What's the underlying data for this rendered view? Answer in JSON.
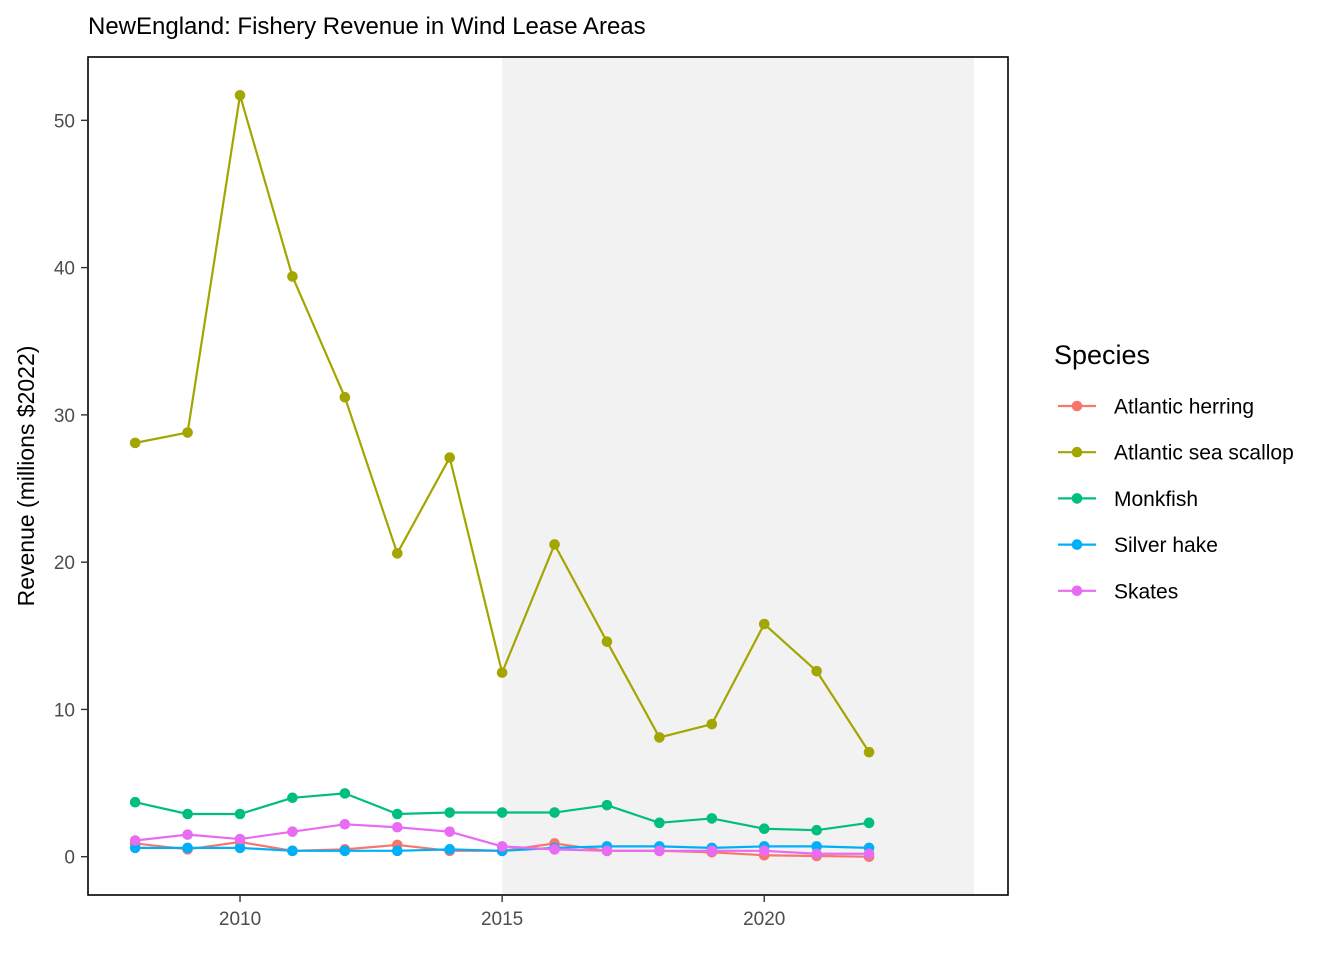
{
  "chart_data": {
    "type": "line",
    "title": "NewEngland: Fishery Revenue in Wind Lease Areas",
    "xlabel": "",
    "ylabel": "Revenue (millions $2022)",
    "x": [
      2008,
      2009,
      2010,
      2011,
      2012,
      2013,
      2014,
      2015,
      2016,
      2017,
      2018,
      2019,
      2020,
      2021,
      2022
    ],
    "xlim": [
      2007.1,
      2024.65
    ],
    "ylim": [
      -2.6,
      54.3
    ],
    "x_ticks": [
      2010,
      2015,
      2020
    ],
    "y_ticks": [
      0,
      10,
      20,
      30,
      40,
      50
    ],
    "shaded_region": {
      "x_start": 2015,
      "x_end": 2024,
      "color": "#f2f2f2"
    },
    "grid": false,
    "legend": {
      "title": "Species",
      "position": "right"
    },
    "series": [
      {
        "name": "Atlantic herring",
        "color": "#F8766D",
        "values": [
          0.9,
          0.5,
          1.0,
          0.4,
          0.5,
          0.8,
          0.4,
          0.4,
          0.9,
          0.4,
          0.4,
          0.3,
          0.1,
          0.05,
          0.0
        ]
      },
      {
        "name": "Atlantic sea scallop",
        "color": "#A3A500",
        "values": [
          28.1,
          28.8,
          51.7,
          39.4,
          31.2,
          20.6,
          27.1,
          12.5,
          21.2,
          14.6,
          8.1,
          9.0,
          15.8,
          12.6,
          7.1
        ]
      },
      {
        "name": "Monkfish",
        "color": "#00BF7D",
        "values": [
          3.7,
          2.9,
          2.9,
          4.0,
          4.3,
          2.9,
          3.0,
          3.0,
          3.0,
          3.5,
          2.3,
          2.6,
          1.9,
          1.8,
          2.3
        ]
      },
      {
        "name": "Silver hake",
        "color": "#00B0F6",
        "values": [
          0.6,
          0.6,
          0.6,
          0.4,
          0.4,
          0.4,
          0.5,
          0.4,
          0.6,
          0.7,
          0.7,
          0.6,
          0.7,
          0.7,
          0.6
        ]
      },
      {
        "name": "Skates",
        "color": "#E76BF3",
        "values": [
          1.1,
          1.5,
          1.2,
          1.7,
          2.2,
          2.0,
          1.7,
          0.7,
          0.5,
          0.4,
          0.4,
          0.4,
          0.4,
          0.2,
          0.2
        ]
      }
    ]
  }
}
